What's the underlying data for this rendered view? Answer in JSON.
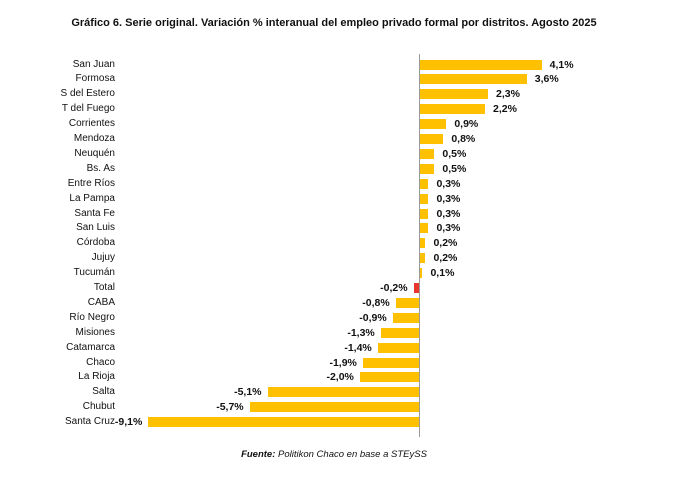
{
  "title": "Gráfico 6. Serie original. Variación % interanual del empleo privado formal por distritos. Agosto 2025",
  "source": {
    "prefix": "Fuente:",
    "text": " Politikon Chaco en base a STEySS"
  },
  "colors": {
    "bar_default": "#FFC000",
    "bar_highlight": "#E8362C",
    "axis_line": "#999999",
    "text": "#111111"
  },
  "chart_data": {
    "type": "bar",
    "orientation": "horizontal",
    "title": "Gráfico 6. Serie original. Variación % interanual del empleo privado formal por distritos. Agosto 2025",
    "value_unit": "%",
    "decimal_style": "comma",
    "categories": [
      "San Juan",
      "Formosa",
      "S del Estero",
      "T del Fuego",
      "Corrientes",
      "Mendoza",
      "Neuquén",
      "Bs. As",
      "Entre Ríos",
      "La Pampa",
      "Santa Fe",
      "San Luis",
      "Córdoba",
      "Jujuy",
      "Tucumán",
      "Total",
      "CABA",
      "Río Negro",
      "Misiones",
      "Catamarca",
      "Chaco",
      "La Rioja",
      "Salta",
      "Chubut",
      "Santa Cruz"
    ],
    "values": [
      4.1,
      3.6,
      2.3,
      2.2,
      0.9,
      0.8,
      0.5,
      0.5,
      0.3,
      0.3,
      0.3,
      0.3,
      0.2,
      0.2,
      0.1,
      -0.2,
      -0.8,
      -0.9,
      -1.3,
      -1.4,
      -1.9,
      -2.0,
      -5.1,
      -5.7,
      -9.1
    ],
    "labels": [
      "4,1%",
      "3,6%",
      "2,3%",
      "2,2%",
      "0,9%",
      "0,8%",
      "0,5%",
      "0,5%",
      "0,3%",
      "0,3%",
      "0,3%",
      "0,3%",
      "0,2%",
      "0,2%",
      "0,1%",
      "-0,2%",
      "-0,8%",
      "-0,9%",
      "-1,3%",
      "-1,4%",
      "-1,9%",
      "-2,0%",
      "-5,1%",
      "-5,7%",
      "-9,1%"
    ],
    "highlight_category": "Total",
    "xlim": [
      -10,
      5
    ],
    "zero_line": true,
    "gridlines": false,
    "legend": false,
    "source_note": "Fuente: Politikon Chaco en base a STEySS"
  }
}
